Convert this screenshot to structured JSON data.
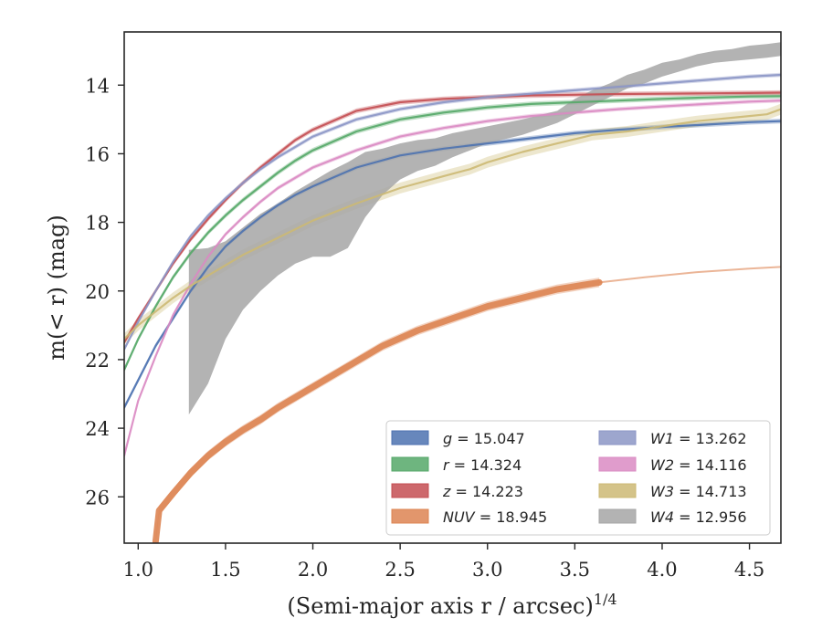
{
  "chart_data": {
    "type": "line",
    "xlabel": "(Semi-major axis r / arcsec)",
    "xlabel_exponent": "1/4",
    "ylabel": "m(< r) (mag)",
    "xlim": [
      0.92,
      4.68
    ],
    "ylim": [
      27.35,
      12.45
    ],
    "y_inverted": true,
    "grid": false,
    "legend_position": "lower-right",
    "xticks": [
      "1.0",
      "1.5",
      "2.0",
      "2.5",
      "3.0",
      "3.5",
      "4.0",
      "4.5"
    ],
    "yticks": [
      "14",
      "16",
      "18",
      "20",
      "22",
      "24",
      "26"
    ],
    "series": [
      {
        "name": "g",
        "band": "g",
        "value": "15.047",
        "color": "#4c72b0",
        "data": [
          [
            0.92,
            23.4
          ],
          [
            1.0,
            22.6
          ],
          [
            1.1,
            21.6
          ],
          [
            1.2,
            20.8
          ],
          [
            1.3,
            20.0
          ],
          [
            1.4,
            19.3
          ],
          [
            1.5,
            18.7
          ],
          [
            1.6,
            18.25
          ],
          [
            1.7,
            17.85
          ],
          [
            1.8,
            17.5
          ],
          [
            1.9,
            17.2
          ],
          [
            2.0,
            16.95
          ],
          [
            2.25,
            16.4
          ],
          [
            2.5,
            16.05
          ],
          [
            2.75,
            15.85
          ],
          [
            3.0,
            15.7
          ],
          [
            3.25,
            15.55
          ],
          [
            3.5,
            15.4
          ],
          [
            3.75,
            15.3
          ],
          [
            4.0,
            15.22
          ],
          [
            4.25,
            15.15
          ],
          [
            4.5,
            15.08
          ],
          [
            4.68,
            15.05
          ]
        ],
        "band_width": 0.14
      },
      {
        "name": "r",
        "band": "r",
        "value": "14.324",
        "color": "#55a868",
        "data": [
          [
            0.92,
            22.3
          ],
          [
            1.0,
            21.4
          ],
          [
            1.1,
            20.45
          ],
          [
            1.2,
            19.6
          ],
          [
            1.3,
            18.9
          ],
          [
            1.4,
            18.3
          ],
          [
            1.5,
            17.8
          ],
          [
            1.6,
            17.35
          ],
          [
            1.7,
            16.95
          ],
          [
            1.8,
            16.55
          ],
          [
            1.9,
            16.2
          ],
          [
            2.0,
            15.9
          ],
          [
            2.25,
            15.35
          ],
          [
            2.5,
            15.0
          ],
          [
            2.75,
            14.8
          ],
          [
            3.0,
            14.65
          ],
          [
            3.25,
            14.55
          ],
          [
            3.5,
            14.5
          ],
          [
            3.75,
            14.45
          ],
          [
            4.0,
            14.4
          ],
          [
            4.25,
            14.36
          ],
          [
            4.5,
            14.33
          ],
          [
            4.68,
            14.32
          ]
        ],
        "band_width": 0.14
      },
      {
        "name": "z",
        "band": "z",
        "value": "14.223",
        "color": "#c44e52",
        "data": [
          [
            0.92,
            21.5
          ],
          [
            1.0,
            20.8
          ],
          [
            1.1,
            20.0
          ],
          [
            1.2,
            19.2
          ],
          [
            1.3,
            18.5
          ],
          [
            1.4,
            17.9
          ],
          [
            1.5,
            17.35
          ],
          [
            1.6,
            16.85
          ],
          [
            1.7,
            16.4
          ],
          [
            1.8,
            16.0
          ],
          [
            1.9,
            15.6
          ],
          [
            2.0,
            15.3
          ],
          [
            2.25,
            14.75
          ],
          [
            2.5,
            14.5
          ],
          [
            2.75,
            14.4
          ],
          [
            3.0,
            14.35
          ],
          [
            3.25,
            14.3
          ],
          [
            3.5,
            14.28
          ],
          [
            3.75,
            14.26
          ],
          [
            4.0,
            14.25
          ],
          [
            4.25,
            14.24
          ],
          [
            4.5,
            14.23
          ],
          [
            4.68,
            14.22
          ]
        ],
        "band_width": 0.14
      },
      {
        "name": "NUV",
        "band": "NUV",
        "value": "18.945",
        "color": "#dd8452",
        "data": [
          [
            1.1,
            27.3
          ],
          [
            1.12,
            26.4
          ],
          [
            1.2,
            25.9
          ],
          [
            1.3,
            25.3
          ],
          [
            1.4,
            24.8
          ],
          [
            1.5,
            24.4
          ],
          [
            1.6,
            24.05
          ],
          [
            1.7,
            23.75
          ],
          [
            1.8,
            23.4
          ],
          [
            1.9,
            23.1
          ],
          [
            2.0,
            22.8
          ],
          [
            2.2,
            22.2
          ],
          [
            2.4,
            21.6
          ],
          [
            2.6,
            21.15
          ],
          [
            2.8,
            20.8
          ],
          [
            3.0,
            20.45
          ],
          [
            3.2,
            20.2
          ],
          [
            3.4,
            19.95
          ],
          [
            3.64,
            19.75
          ]
        ],
        "band_width": 0.28,
        "extrapolation": [
          [
            3.64,
            19.75
          ],
          [
            3.9,
            19.6
          ],
          [
            4.2,
            19.45
          ],
          [
            4.5,
            19.35
          ],
          [
            4.68,
            19.3
          ]
        ]
      },
      {
        "name": "W1",
        "band": "W1",
        "value": "13.262",
        "color": "#8c96c6",
        "data": [
          [
            0.92,
            21.7
          ],
          [
            1.0,
            20.9
          ],
          [
            1.1,
            20.0
          ],
          [
            1.2,
            19.15
          ],
          [
            1.3,
            18.4
          ],
          [
            1.4,
            17.8
          ],
          [
            1.5,
            17.3
          ],
          [
            1.6,
            16.85
          ],
          [
            1.7,
            16.45
          ],
          [
            1.8,
            16.1
          ],
          [
            1.9,
            15.8
          ],
          [
            2.0,
            15.5
          ],
          [
            2.25,
            15.0
          ],
          [
            2.5,
            14.7
          ],
          [
            2.75,
            14.5
          ],
          [
            3.0,
            14.35
          ],
          [
            3.25,
            14.25
          ],
          [
            3.5,
            14.15
          ],
          [
            3.75,
            14.05
          ],
          [
            4.0,
            13.95
          ],
          [
            4.25,
            13.85
          ],
          [
            4.5,
            13.75
          ],
          [
            4.68,
            13.7
          ]
        ],
        "band_width": 0.12
      },
      {
        "name": "W2",
        "band": "W2",
        "value": "14.116",
        "color": "#da8bc3",
        "data": [
          [
            0.92,
            24.8
          ],
          [
            1.0,
            23.2
          ],
          [
            1.1,
            21.9
          ],
          [
            1.2,
            20.7
          ],
          [
            1.3,
            19.8
          ],
          [
            1.4,
            19.0
          ],
          [
            1.5,
            18.35
          ],
          [
            1.6,
            17.85
          ],
          [
            1.7,
            17.4
          ],
          [
            1.8,
            17.0
          ],
          [
            1.9,
            16.7
          ],
          [
            2.0,
            16.4
          ],
          [
            2.25,
            15.9
          ],
          [
            2.5,
            15.5
          ],
          [
            2.75,
            15.25
          ],
          [
            3.0,
            15.05
          ],
          [
            3.25,
            14.9
          ],
          [
            3.5,
            14.8
          ],
          [
            3.75,
            14.7
          ],
          [
            4.0,
            14.62
          ],
          [
            4.25,
            14.55
          ],
          [
            4.5,
            14.48
          ],
          [
            4.68,
            14.45
          ]
        ],
        "band_width": 0.12
      },
      {
        "name": "W3",
        "band": "W3",
        "value": "14.713",
        "color": "#ccb974",
        "data": [
          [
            0.92,
            21.4
          ],
          [
            1.0,
            21.0
          ],
          [
            1.1,
            20.6
          ],
          [
            1.2,
            20.2
          ],
          [
            1.3,
            19.85
          ],
          [
            1.4,
            19.55
          ],
          [
            1.5,
            19.25
          ],
          [
            1.6,
            18.95
          ],
          [
            1.7,
            18.7
          ],
          [
            1.8,
            18.45
          ],
          [
            1.9,
            18.2
          ],
          [
            2.0,
            17.95
          ],
          [
            2.25,
            17.45
          ],
          [
            2.5,
            17.0
          ],
          [
            2.75,
            16.65
          ],
          [
            2.9,
            16.45
          ],
          [
            3.0,
            16.25
          ],
          [
            3.2,
            15.95
          ],
          [
            3.4,
            15.7
          ],
          [
            3.6,
            15.45
          ],
          [
            3.8,
            15.35
          ],
          [
            4.0,
            15.2
          ],
          [
            4.2,
            15.05
          ],
          [
            4.4,
            14.95
          ],
          [
            4.6,
            14.85
          ],
          [
            4.68,
            14.7
          ]
        ],
        "band_width": 0.32
      },
      {
        "name": "W4",
        "band": "W4",
        "value": "12.956",
        "color": "#a6a6a6",
        "data": [
          [
            1.29,
            20.9
          ],
          [
            1.4,
            20.3
          ],
          [
            1.5,
            19.7
          ],
          [
            1.6,
            19.15
          ],
          [
            1.7,
            18.7
          ],
          [
            1.8,
            18.3
          ],
          [
            1.9,
            17.95
          ],
          [
            2.0,
            17.6
          ],
          [
            2.1,
            17.25
          ],
          [
            2.2,
            16.9
          ],
          [
            2.3,
            16.45
          ],
          [
            2.4,
            16.3
          ],
          [
            2.5,
            16.05
          ],
          [
            2.6,
            15.95
          ],
          [
            2.7,
            15.9
          ],
          [
            2.8,
            15.75
          ],
          [
            2.9,
            15.6
          ],
          [
            3.0,
            15.45
          ],
          [
            3.2,
            15.25
          ],
          [
            3.4,
            14.95
          ],
          [
            3.5,
            14.6
          ],
          [
            3.6,
            14.35
          ],
          [
            3.7,
            14.15
          ],
          [
            3.8,
            13.9
          ],
          [
            3.9,
            13.75
          ],
          [
            4.0,
            13.55
          ],
          [
            4.1,
            13.45
          ],
          [
            4.2,
            13.3
          ],
          [
            4.3,
            13.2
          ],
          [
            4.4,
            13.15
          ],
          [
            4.5,
            13.05
          ],
          [
            4.6,
            13.0
          ],
          [
            4.68,
            12.95
          ]
        ],
        "lower": [
          [
            1.29,
            23.6
          ],
          [
            1.4,
            22.7
          ],
          [
            1.5,
            21.4
          ],
          [
            1.6,
            20.55
          ],
          [
            1.7,
            20.0
          ],
          [
            1.8,
            19.55
          ],
          [
            1.9,
            19.2
          ],
          [
            2.0,
            19.0
          ],
          [
            2.1,
            19.0
          ],
          [
            2.2,
            18.75
          ],
          [
            2.3,
            17.85
          ],
          [
            2.4,
            17.2
          ],
          [
            2.5,
            16.75
          ],
          [
            2.6,
            16.5
          ],
          [
            2.7,
            16.35
          ],
          [
            2.8,
            16.1
          ],
          [
            2.9,
            15.9
          ],
          [
            3.0,
            15.7
          ],
          [
            3.2,
            15.45
          ],
          [
            3.4,
            15.1
          ],
          [
            3.5,
            14.85
          ],
          [
            3.6,
            14.6
          ],
          [
            3.7,
            14.35
          ],
          [
            3.8,
            14.1
          ],
          [
            3.9,
            13.95
          ],
          [
            4.0,
            13.75
          ],
          [
            4.1,
            13.6
          ],
          [
            4.2,
            13.45
          ],
          [
            4.3,
            13.35
          ],
          [
            4.4,
            13.3
          ],
          [
            4.5,
            13.25
          ],
          [
            4.6,
            13.2
          ],
          [
            4.68,
            13.15
          ]
        ],
        "upper": [
          [
            1.29,
            18.8
          ],
          [
            1.4,
            18.75
          ],
          [
            1.5,
            18.55
          ],
          [
            1.6,
            18.15
          ],
          [
            1.7,
            17.75
          ],
          [
            1.8,
            17.45
          ],
          [
            1.9,
            17.1
          ],
          [
            2.0,
            16.8
          ],
          [
            2.1,
            16.5
          ],
          [
            2.2,
            16.25
          ],
          [
            2.3,
            15.95
          ],
          [
            2.4,
            15.85
          ],
          [
            2.5,
            15.7
          ],
          [
            2.6,
            15.6
          ],
          [
            2.7,
            15.55
          ],
          [
            2.8,
            15.4
          ],
          [
            2.9,
            15.3
          ],
          [
            3.0,
            15.2
          ],
          [
            3.2,
            15.0
          ],
          [
            3.4,
            14.75
          ],
          [
            3.5,
            14.4
          ],
          [
            3.6,
            14.15
          ],
          [
            3.7,
            13.95
          ],
          [
            3.8,
            13.7
          ],
          [
            3.9,
            13.55
          ],
          [
            4.0,
            13.35
          ],
          [
            4.1,
            13.25
          ],
          [
            4.2,
            13.1
          ],
          [
            4.3,
            13.0
          ],
          [
            4.4,
            12.95
          ],
          [
            4.5,
            12.85
          ],
          [
            4.6,
            12.8
          ],
          [
            4.68,
            12.75
          ]
        ]
      }
    ]
  }
}
